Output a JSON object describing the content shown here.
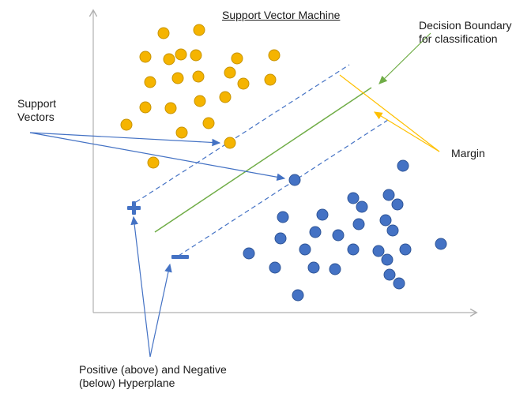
{
  "title": "Support Vector Machine",
  "labels": {
    "decision_boundary_line1": "Decision Boundary",
    "decision_boundary_line2": "for classification",
    "support_vectors_line1": "Support",
    "support_vectors_line2": "Vectors",
    "margin": "Margin",
    "hyperplanes_line1": "Positive (above) and Negative",
    "hyperplanes_line2": "(below) Hyperplane"
  },
  "colors": {
    "positive_class": "#f5b400",
    "positive_outline": "#c79300",
    "negative_class": "#4472c4",
    "negative_outline": "#2f5597",
    "decision_boundary": "#70ad47",
    "hyperplane": "#4472c4",
    "margin_arrow": "#ffc000",
    "axis": "#b0b0b0"
  },
  "symbols": {
    "positive_marker": "plus",
    "negative_marker": "minus"
  }
}
